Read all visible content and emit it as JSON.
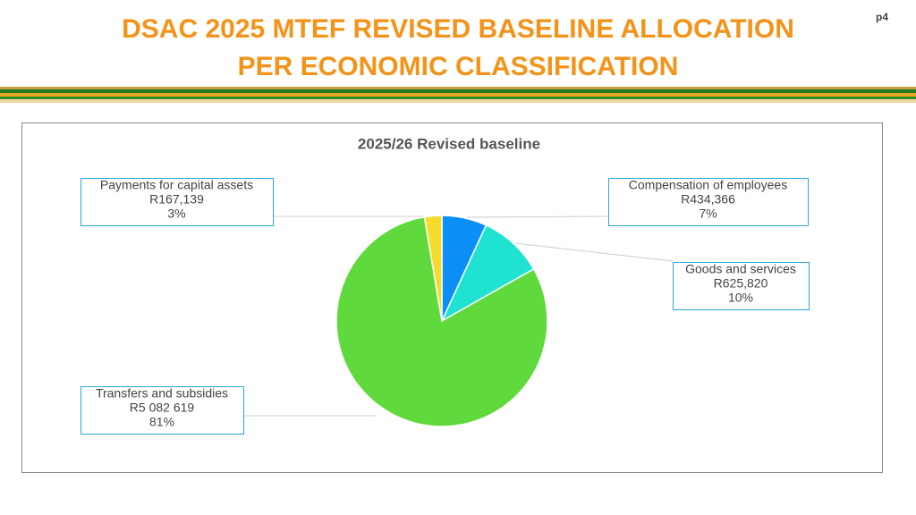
{
  "slide": {
    "title_lines": [
      "DSAC 2025 MTEF REVISED BASELINE ALLOCATION",
      "PER ECONOMIC CLASSIFICATION"
    ],
    "page": "p4"
  },
  "chart_data": {
    "type": "pie",
    "title": "2025/26 Revised baseline",
    "categories": [
      "Compensation of employees",
      "Goods and services",
      "Transfers and subsidies",
      "Payments for capital assets"
    ],
    "values": [
      434366,
      625820,
      5082619,
      167139
    ],
    "value_labels": [
      "R434,366",
      "R625,820",
      "R5 082 619",
      "R167,139"
    ],
    "percent_labels": [
      "7%",
      "10%",
      "81%",
      "3%"
    ],
    "colors": [
      "#0b8ef5",
      "#1fe3d0",
      "#5fd93b",
      "#f5dc2c"
    ]
  }
}
